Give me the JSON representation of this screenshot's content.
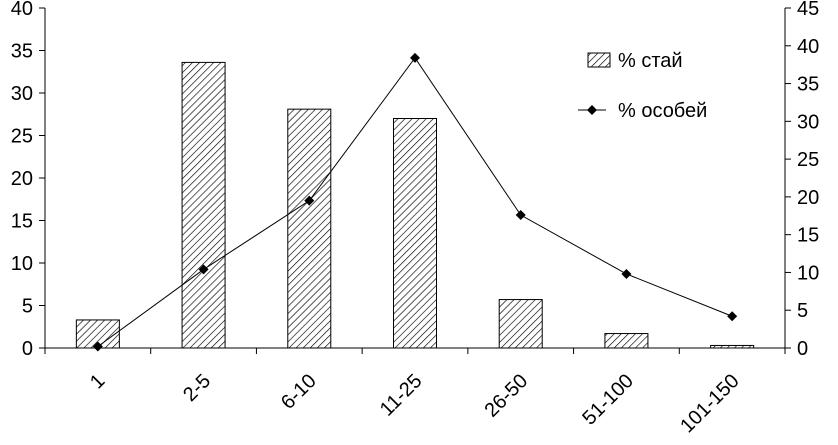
{
  "chart_data": {
    "type": "bar",
    "categories": [
      "1",
      "2-5",
      "6-10",
      "11-25",
      "26-50",
      "51-100",
      "101-150"
    ],
    "series": [
      {
        "name": "% стай",
        "type": "bar",
        "axis": "left",
        "values": [
          3.3,
          33.6,
          28.1,
          27.0,
          5.7,
          1.7,
          0.3
        ]
      },
      {
        "name": "% особей",
        "type": "line",
        "axis": "right",
        "values": [
          0.2,
          10.4,
          19.5,
          38.4,
          17.6,
          9.8,
          4.2
        ]
      }
    ],
    "y_left": {
      "range": [
        0,
        40
      ],
      "ticks": [
        "0",
        "5",
        "10",
        "15",
        "20",
        "25",
        "30",
        "35",
        "40"
      ]
    },
    "y_right": {
      "range": [
        0,
        45
      ],
      "ticks": [
        "0",
        "5",
        "10",
        "15",
        "20",
        "25",
        "30",
        "35",
        "40",
        "45"
      ]
    },
    "title": "",
    "xlabel": "",
    "ylabel": "",
    "grid": false,
    "legend_position": "top-right",
    "colors": {
      "bar_fill": "#ffffff",
      "bar_hatch": "#000000",
      "line": "#000000"
    }
  }
}
